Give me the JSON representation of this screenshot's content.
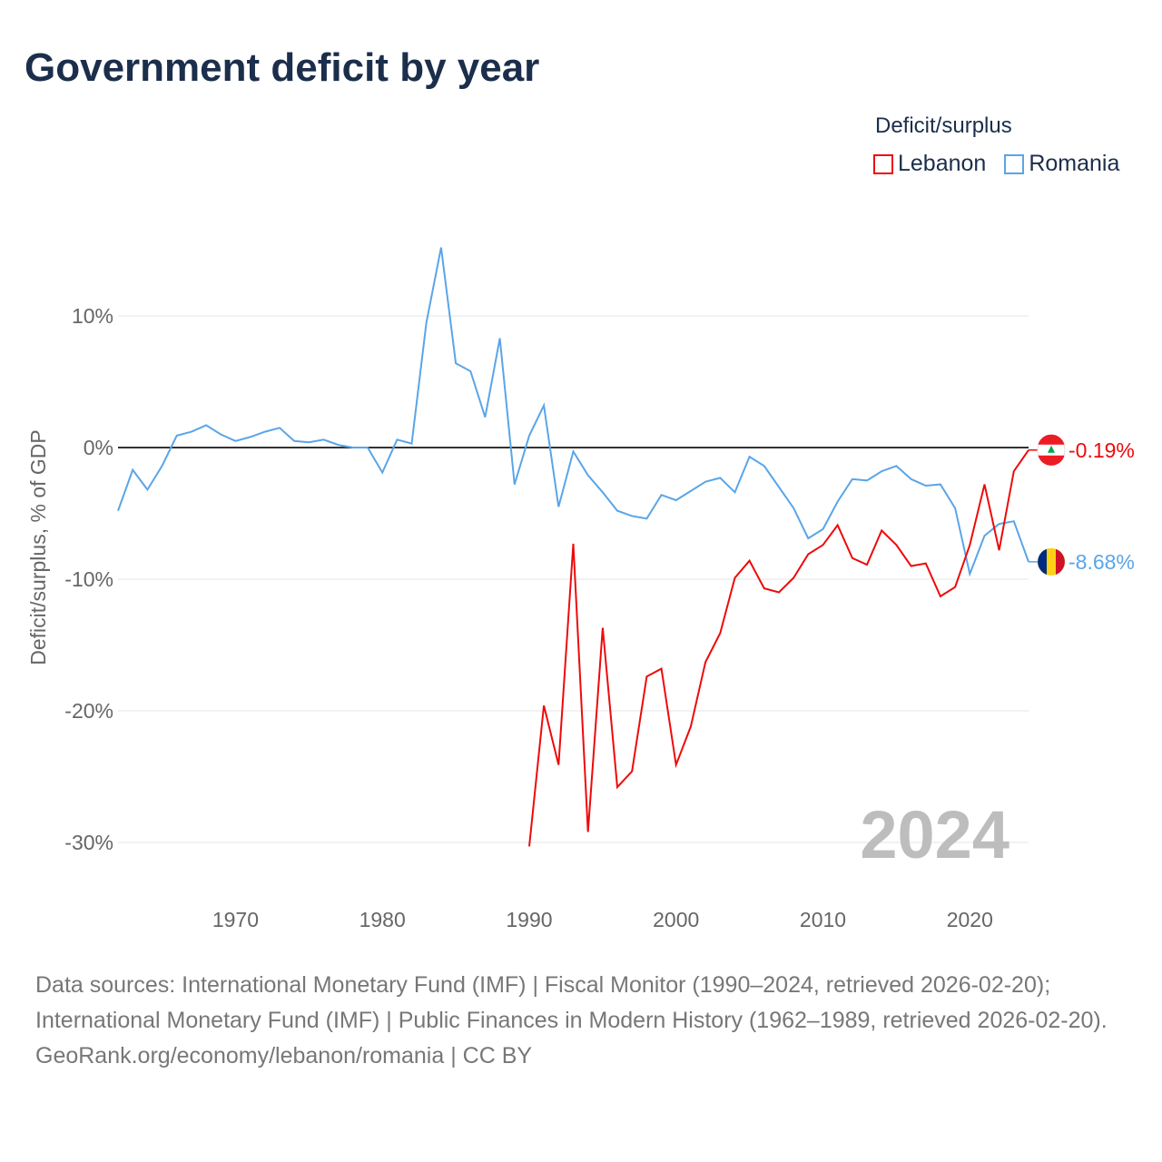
{
  "title": "Government deficit by year",
  "legend": {
    "title": "Deficit/surplus",
    "items": [
      {
        "name": "Lebanon",
        "color": "#ee0a0a"
      },
      {
        "name": "Romania",
        "color": "#5aa5e8"
      }
    ]
  },
  "footer": {
    "sources": "Data sources: International Monetary Fund (IMF) | Fiscal Monitor (1990–2024, retrieved 2026-02-20); International Monetary Fund (IMF) | Public Finances in Modern History (1962–1989, retrieved 2026-02-20).",
    "credit": "GeoRank.org/economy/lebanon/romania | CC BY"
  },
  "chart_data": {
    "type": "line",
    "title": "Government deficit by year",
    "ylabel": "Deficit/surplus, % of GDP",
    "xlabel": "",
    "xlim": [
      1962,
      2024
    ],
    "ylim": [
      -33,
      17
    ],
    "x_ticks": [
      1970,
      1980,
      1990,
      2000,
      2010,
      2020
    ],
    "y_ticks": [
      {
        "v": 10,
        "label": "10%"
      },
      {
        "v": 0,
        "label": "0%"
      },
      {
        "v": -10,
        "label": "-10%"
      },
      {
        "v": -20,
        "label": "-20%"
      },
      {
        "v": -30,
        "label": "-30%"
      }
    ],
    "year_label": "2024",
    "series": [
      {
        "name": "Romania",
        "color": "#5aa5e8",
        "end_label": "-8.68%",
        "start": 1962,
        "values": [
          -4.8,
          -1.7,
          -3.2,
          -1.4,
          0.9,
          1.2,
          1.7,
          1.0,
          0.5,
          0.8,
          1.2,
          1.5,
          0.5,
          0.4,
          0.6,
          0.2,
          0.0,
          0.0,
          -1.9,
          0.6,
          0.3,
          9.5,
          15.2,
          6.4,
          5.8,
          2.3,
          8.3,
          -2.8,
          0.9,
          3.2,
          -4.5,
          -0.3,
          -2.1,
          -3.4,
          -4.8,
          -5.2,
          -5.4,
          -3.6,
          -4.0,
          -3.3,
          -2.6,
          -2.3,
          -3.4,
          -0.7,
          -1.4,
          -3.0,
          -4.6,
          -6.9,
          -6.2,
          -4.1,
          -2.4,
          -2.5,
          -1.8,
          -1.4,
          -2.4,
          -2.9,
          -2.8,
          -4.6,
          -9.6,
          -6.7,
          -5.8,
          -5.6,
          -8.68
        ]
      },
      {
        "name": "Lebanon",
        "color": "#ee0a0a",
        "end_label": "-0.19%",
        "start": 1990,
        "values": [
          -30.3,
          -19.6,
          -24.1,
          -7.3,
          -29.2,
          -13.7,
          -25.8,
          -24.6,
          -17.4,
          -16.8,
          -24.1,
          -21.2,
          -16.3,
          -14.1,
          -9.9,
          -8.6,
          -10.7,
          -11.0,
          -9.9,
          -8.1,
          -7.4,
          -5.9,
          -8.4,
          -8.9,
          -6.3,
          -7.4,
          -9.0,
          -8.8,
          -11.3,
          -10.6,
          -7.4,
          -2.8,
          -7.8,
          -1.8,
          -0.19
        ]
      }
    ]
  }
}
